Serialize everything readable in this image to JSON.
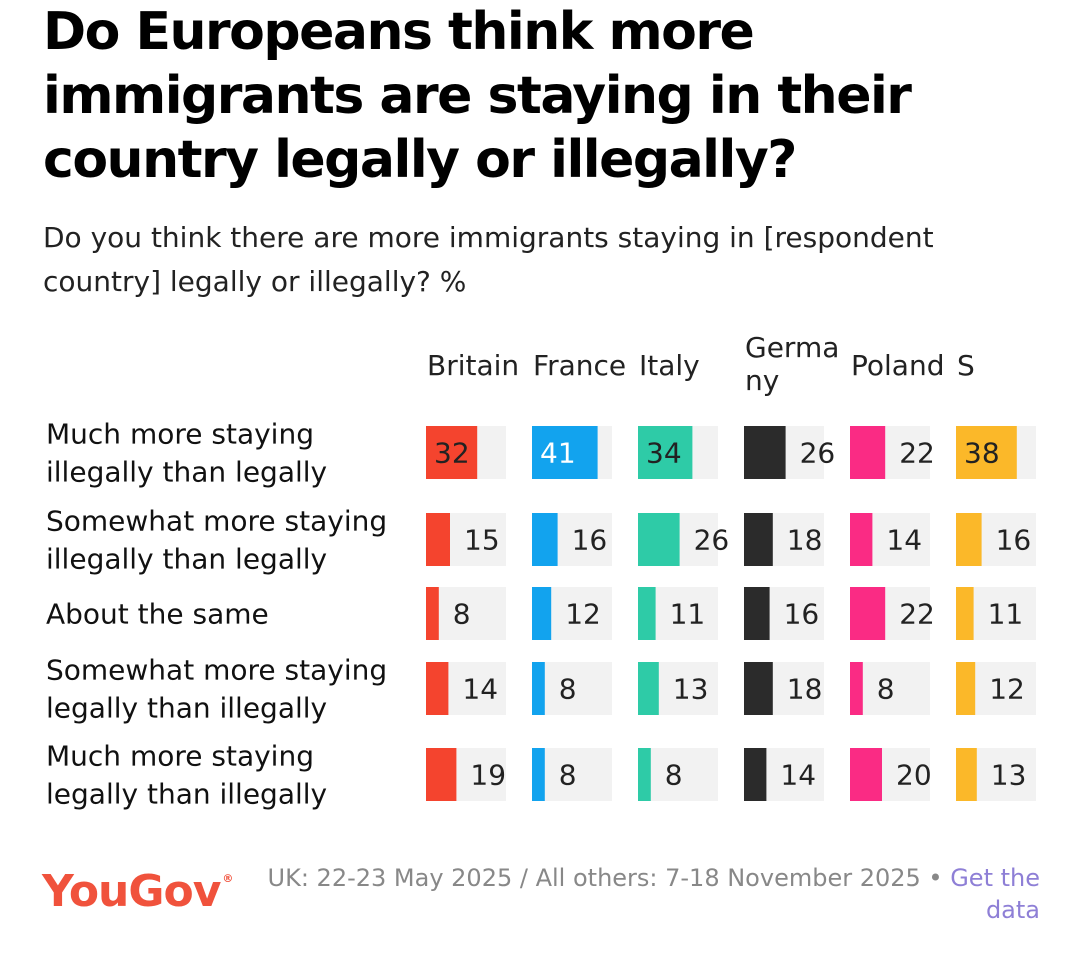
{
  "title": "Do Europeans think more immigrants are staying in their country legally or illegally?",
  "subtitle": "Do you think there are more immigrants staying in [respondent country] legally or illegally? %",
  "footer": {
    "brand": "YouGov",
    "brand_mark": "®",
    "note": "UK: 22-23 May 2025 / All others: 7-18 November 2025 • ",
    "link": "Get the data"
  },
  "chart_data": {
    "type": "table",
    "title": "Do Europeans think more immigrants are staying in their country legally or illegally?",
    "unit": "%",
    "categories": [
      [
        "Much more staying",
        "illegally than legally"
      ],
      [
        "Somewhat more staying",
        "illegally than legally"
      ],
      [
        "About the same"
      ],
      [
        "Somewhat more staying",
        "legally than illegally"
      ],
      [
        "Much more staying",
        "legally than illegally"
      ]
    ],
    "series": [
      {
        "name": [
          "Britain"
        ],
        "color": "#f4442e",
        "values": [
          32,
          15,
          8,
          14,
          19
        ]
      },
      {
        "name": [
          "France"
        ],
        "color": "#12a3ee",
        "values": [
          41,
          16,
          12,
          8,
          8
        ]
      },
      {
        "name": [
          "Italy"
        ],
        "color": "#2ecba7",
        "values": [
          34,
          26,
          11,
          13,
          8
        ]
      },
      {
        "name": [
          "Germa",
          "ny"
        ],
        "color": "#2b2b2b",
        "values": [
          26,
          18,
          16,
          18,
          14
        ]
      },
      {
        "name": [
          "Poland"
        ],
        "color": "#fa2b84",
        "values": [
          22,
          14,
          22,
          8,
          20
        ]
      },
      {
        "name": [
          "S"
        ],
        "color": "#fbb829",
        "values": [
          38,
          16,
          11,
          12,
          13
        ]
      }
    ],
    "xlim": [
      0,
      50
    ],
    "track_color": "#f2f2f2"
  }
}
